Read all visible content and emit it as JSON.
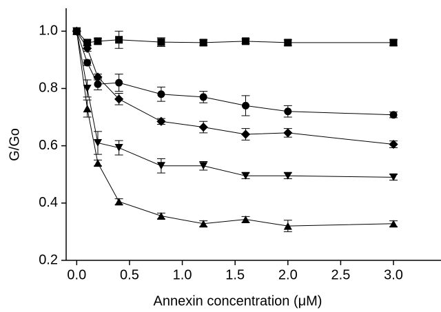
{
  "chart_data": {
    "type": "line",
    "xlabel": "Annexin concentration (μM)",
    "ylabel": "G/Go",
    "x": [
      0,
      0.1,
      0.2,
      0.4,
      0.8,
      1.2,
      1.6,
      2.0,
      3.0
    ],
    "xlim": [
      -0.1,
      3.45
    ],
    "ylim": [
      0.2,
      1.08
    ],
    "xticks": [
      {
        "value": 0,
        "label": "0.0"
      },
      0.5,
      {
        "value": 1,
        "label": "1.0"
      },
      1.5,
      {
        "value": 2,
        "label": "2.0"
      },
      2.5,
      {
        "value": 3,
        "label": "3.0"
      }
    ],
    "yticks": [
      0.2,
      0.4,
      0.6,
      0.8,
      {
        "value": 1,
        "label": "1.0"
      }
    ],
    "grid": false,
    "series": [
      {
        "marker": "square",
        "color": "#000000",
        "values": [
          1.0,
          0.96,
          0.965,
          0.97,
          0.962,
          0.96,
          0.965,
          0.96,
          0.96
        ],
        "errors": [
          0,
          0.01,
          0.01,
          0.03,
          0.015,
          0.01,
          0.008,
          0.01,
          0.01
        ]
      },
      {
        "marker": "circle",
        "color": "#000000",
        "values": [
          1.0,
          0.89,
          0.815,
          0.82,
          0.78,
          0.77,
          0.74,
          0.72,
          0.708
        ],
        "errors": [
          0,
          0.01,
          0.02,
          0.03,
          0.025,
          0.02,
          0.035,
          0.02,
          0.01
        ]
      },
      {
        "marker": "diamond",
        "color": "#000000",
        "values": [
          1.0,
          0.94,
          0.84,
          0.763,
          0.685,
          0.665,
          0.64,
          0.645,
          0.605
        ],
        "errors": [
          0,
          0.01,
          0.01,
          0.02,
          0.01,
          0.02,
          0.02,
          0.015,
          0.012
        ]
      },
      {
        "marker": "triangle-down",
        "color": "#000000",
        "values": [
          1.0,
          0.8,
          0.61,
          0.593,
          0.53,
          0.53,
          0.495,
          0.495,
          0.49
        ],
        "errors": [
          0,
          0.03,
          0.04,
          0.025,
          0.025,
          0.015,
          0.01,
          0.01,
          0.01
        ]
      },
      {
        "marker": "triangle-up",
        "color": "#000000",
        "values": [
          1.0,
          0.73,
          0.54,
          0.405,
          0.355,
          0.328,
          0.343,
          0.32,
          0.328
        ],
        "errors": [
          0,
          0.03,
          0.01,
          0.01,
          0.01,
          0.01,
          0.01,
          0.02,
          0.01
        ]
      }
    ]
  }
}
